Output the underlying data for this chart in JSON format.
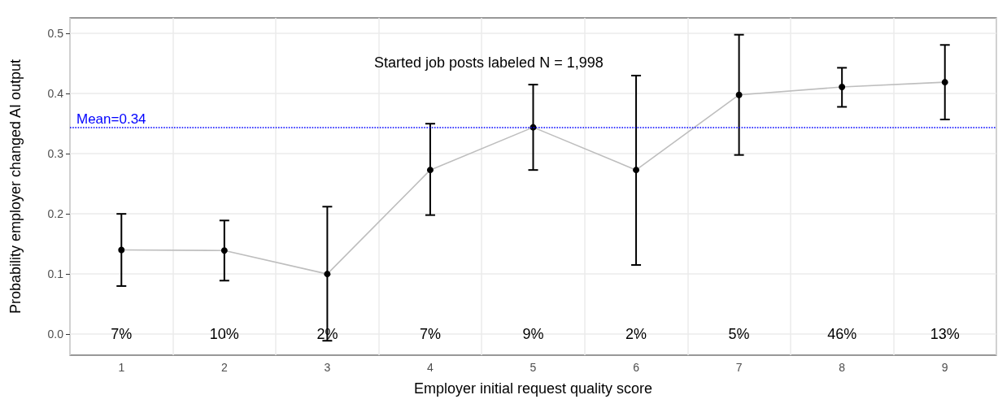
{
  "chart_data": {
    "type": "line",
    "xlabel": "Employer initial request quality score",
    "ylabel": "Probability employer changed AI output",
    "categories": [
      "1",
      "2",
      "3",
      "4",
      "5",
      "6",
      "7",
      "8",
      "9"
    ],
    "series": [
      {
        "color": "#000000",
        "values": [
          0.14,
          0.139,
          0.1,
          0.273,
          0.344,
          0.273,
          0.398,
          0.411,
          0.419
        ],
        "errors": [
          [
            0.08,
            0.2
          ],
          [
            0.089,
            0.189
          ],
          [
            -0.011,
            0.212
          ],
          [
            0.198,
            0.35
          ],
          [
            0.273,
            0.415
          ],
          [
            0.115,
            0.43
          ],
          [
            0.298,
            0.498
          ],
          [
            0.378,
            0.443
          ],
          [
            0.357,
            0.481
          ]
        ]
      }
    ],
    "ylim": [
      -0.035,
      0.526
    ],
    "yticks": [
      {
        "value": 0,
        "label": "0.0"
      },
      {
        "value": 0.1,
        "label": "0.1"
      },
      {
        "value": 0.2,
        "label": "0.2"
      },
      {
        "value": 0.3,
        "label": "0.3"
      },
      {
        "value": 0.4,
        "label": "0.4"
      },
      {
        "value": 0.5,
        "label": "0.5"
      }
    ],
    "ref_lines": [
      {
        "axis": "y",
        "value": 0.344,
        "label": "Mean=0.34",
        "color": "#0000ff",
        "line_style": "dotted"
      }
    ],
    "annotations": [
      "Started job posts labeled N = 1,998",
      "7%",
      "10%",
      "2%",
      "7%",
      "9%",
      "2%",
      "5%",
      "46%",
      "13%"
    ],
    "grid": true,
    "marker": "circle",
    "line_style": "solid"
  }
}
